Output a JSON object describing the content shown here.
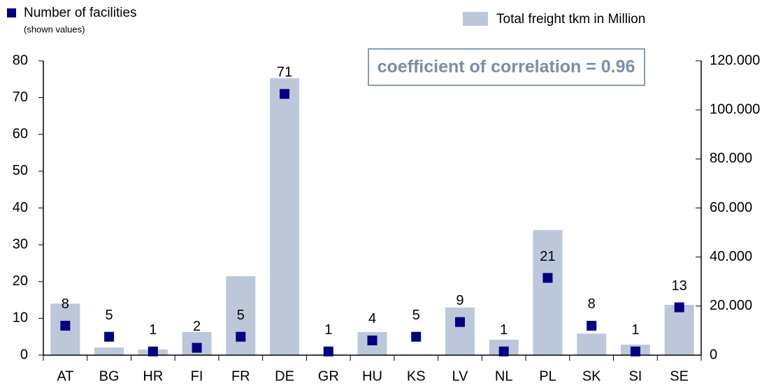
{
  "chart_data": {
    "type": "bar_marker_combo",
    "annotation": "coefficient of correlation = 0.96",
    "legend_note": "(shown values)",
    "categories": [
      "AT",
      "BG",
      "HR",
      "FI",
      "FR",
      "DE",
      "GR",
      "HU",
      "KS",
      "LV",
      "NL",
      "PL",
      "SK",
      "SI",
      "SE"
    ],
    "series": [
      {
        "name": "Number of facilities",
        "color": "#000080",
        "values": [
          8,
          5,
          1,
          2,
          5,
          71,
          1,
          4,
          5,
          9,
          1,
          21,
          8,
          1,
          13
        ]
      },
      {
        "name": "Total freight tkm in Million",
        "color": "#bcc8da",
        "axis": "y2",
        "values": [
          21000,
          3100,
          2300,
          9400,
          32200,
          112900,
          300,
          9400,
          300,
          19400,
          6300,
          51000,
          8800,
          4300,
          20500
        ]
      }
    ],
    "ylim": [
      0,
      80
    ],
    "yticks": [
      0,
      10,
      20,
      30,
      40,
      50,
      60,
      70,
      80
    ],
    "y2lim": [
      0,
      120000
    ],
    "y2ticks": [
      0,
      {
        "value": 20000,
        "label": "20.000"
      },
      {
        "value": 40000,
        "label": "40.000"
      },
      {
        "value": 60000,
        "label": "60.000"
      },
      {
        "value": 80000,
        "label": "80.000"
      },
      {
        "value": 100000,
        "label": "100.000"
      },
      {
        "value": 120000,
        "label": "120.000"
      }
    ]
  }
}
